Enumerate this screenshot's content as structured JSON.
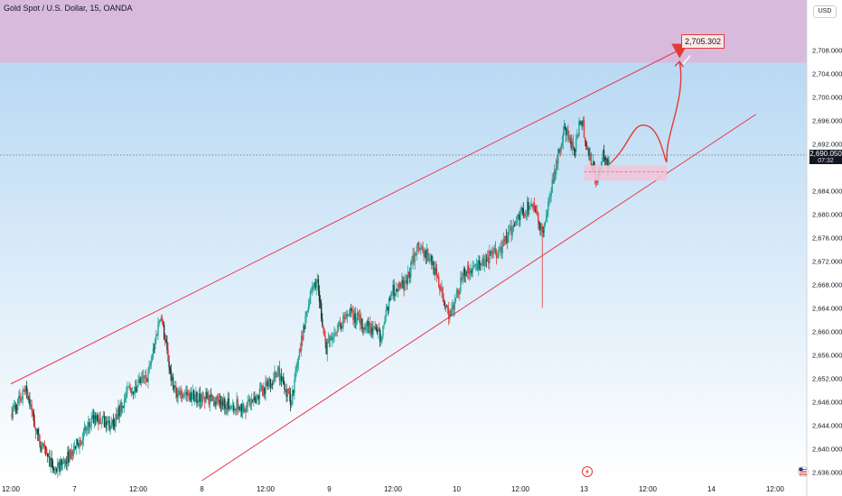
{
  "header": {
    "title": "Gold Spot / U.S. Dollar, 15, OANDA"
  },
  "currency_button": "USD",
  "current_price": {
    "value": "2,690.050",
    "countdown": "07:32"
  },
  "target": {
    "label": "2,705.302",
    "price": 2705.302
  },
  "colors": {
    "up": "#26a69a",
    "down": "#e53935",
    "dark_candle": "#1b3a2d",
    "channel": "#e53950",
    "zone_top": "#d9b8db",
    "zone_box": "#f2c4d8",
    "bg_top": "#aed3f2",
    "bg_bottom": "#ffffff"
  },
  "icons": {
    "lightning": "lightning-icon",
    "flag": "us-flag-icon"
  },
  "chart_data": {
    "type": "candlestick",
    "y_range": [
      2634.5,
      2716.5
    ],
    "y_ticks": [
      {
        "v": 2708,
        "label": "2,708.000"
      },
      {
        "v": 2704,
        "label": "2,704.000"
      },
      {
        "v": 2700,
        "label": "2,700.000"
      },
      {
        "v": 2696,
        "label": "2,696.000"
      },
      {
        "v": 2692,
        "label": "2,692.000"
      },
      {
        "v": 2684,
        "label": "2,684.000"
      },
      {
        "v": 2680,
        "label": "2,680.000"
      },
      {
        "v": 2676,
        "label": "2,676.000"
      },
      {
        "v": 2672,
        "label": "2,672.000"
      },
      {
        "v": 2668,
        "label": "2,668.000"
      },
      {
        "v": 2664,
        "label": "2,664.000"
      },
      {
        "v": 2660,
        "label": "2,660.000"
      },
      {
        "v": 2656,
        "label": "2,656.000"
      },
      {
        "v": 2652,
        "label": "2,652.000"
      },
      {
        "v": 2648,
        "label": "2,648.000"
      },
      {
        "v": 2644,
        "label": "2,644.000"
      },
      {
        "v": 2640,
        "label": "2,640.000"
      },
      {
        "v": 2636,
        "label": "2,636.000"
      }
    ],
    "x_ticks": [
      {
        "t": 0,
        "label": "12:00"
      },
      {
        "t": 1,
        "label": "7"
      },
      {
        "t": 2,
        "label": "12:00"
      },
      {
        "t": 3,
        "label": "8"
      },
      {
        "t": 4,
        "label": "12:00"
      },
      {
        "t": 5,
        "label": "9"
      },
      {
        "t": 6,
        "label": "12:00"
      },
      {
        "t": 7,
        "label": "10"
      },
      {
        "t": 8,
        "label": "12:00"
      },
      {
        "t": 9,
        "label": "13"
      },
      {
        "t": 10,
        "label": "12:00"
      },
      {
        "t": 11,
        "label": "14"
      },
      {
        "t": 12,
        "label": "12:00"
      }
    ],
    "x_range": [
      0,
      12.6
    ],
    "price_path": [
      [
        0.0,
        2646
      ],
      [
        0.25,
        2650
      ],
      [
        0.45,
        2641
      ],
      [
        0.7,
        2636
      ],
      [
        1.0,
        2640
      ],
      [
        1.3,
        2645
      ],
      [
        1.6,
        2644
      ],
      [
        1.85,
        2650
      ],
      [
        2.15,
        2652
      ],
      [
        2.35,
        2663
      ],
      [
        2.55,
        2650
      ],
      [
        2.85,
        2649
      ],
      [
        3.3,
        2648
      ],
      [
        3.7,
        2647
      ],
      [
        4.2,
        2653
      ],
      [
        4.4,
        2648
      ],
      [
        4.65,
        2664
      ],
      [
        4.8,
        2669
      ],
      [
        4.95,
        2657
      ],
      [
        5.1,
        2660
      ],
      [
        5.3,
        2663
      ],
      [
        5.6,
        2661
      ],
      [
        5.8,
        2659
      ],
      [
        6.0,
        2667
      ],
      [
        6.2,
        2668
      ],
      [
        6.4,
        2675
      ],
      [
        6.6,
        2672
      ],
      [
        6.9,
        2662
      ],
      [
        7.1,
        2670
      ],
      [
        7.3,
        2671
      ],
      [
        7.7,
        2674
      ],
      [
        8.0,
        2680
      ],
      [
        8.2,
        2682
      ],
      [
        8.35,
        2676
      ],
      [
        8.55,
        2688
      ],
      [
        8.7,
        2695
      ],
      [
        8.85,
        2690
      ],
      [
        8.95,
        2697
      ],
      [
        9.05,
        2691
      ],
      [
        9.2,
        2686
      ],
      [
        9.3,
        2690
      ],
      [
        9.4,
        2688
      ]
    ],
    "spike_low": {
      "t": 8.35,
      "low": 2664
    },
    "channel_upper": [
      [
        0.0,
        2651
      ],
      [
        10.5,
        2708
      ]
    ],
    "channel_lower": [
      [
        3.0,
        2634.5
      ],
      [
        11.7,
        2697
      ]
    ],
    "projection": [
      [
        9.4,
        2688.5
      ],
      [
        9.75,
        2692
      ],
      [
        10.0,
        2695
      ],
      [
        10.3,
        2690
      ],
      [
        10.6,
        2700
      ],
      [
        10.5,
        2706
      ]
    ],
    "target_point": [
      10.5,
      2707.8
    ],
    "box": {
      "t0": 9.0,
      "t1": 10.3,
      "top": 2688.3,
      "bottom": 2685.7,
      "mid": 2687.2
    },
    "resistance_zone": {
      "top": 2716.5,
      "bottom": 2705.8
    },
    "current_price_value": 2690.05
  }
}
